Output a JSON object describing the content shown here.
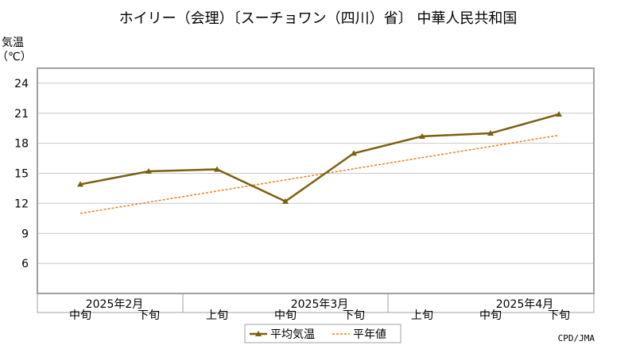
{
  "chart_data": {
    "type": "line",
    "title": "ホイリー（会理）〔スーチョワン（四川）省〕 中華人民共和国",
    "ylabel_line1": "気温",
    "ylabel_line2": "（℃）",
    "ylim": [
      3,
      25.5
    ],
    "yticks": [
      6,
      9,
      12,
      15,
      18,
      21,
      24
    ],
    "grid": true,
    "categories": [
      "中旬",
      "下旬",
      "上旬",
      "中旬",
      "下旬",
      "上旬",
      "中旬",
      "下旬"
    ],
    "month_labels": [
      {
        "label": "2025年2月",
        "center_index": 0.5
      },
      {
        "label": "2025年3月",
        "center_index": 3.5
      },
      {
        "label": "2025年4月",
        "center_index": 6.5
      }
    ],
    "month_dividers": [
      1.5,
      4.5
    ],
    "series": [
      {
        "name": "平均気温",
        "style": "solid-marker",
        "color": "#7a6010",
        "values": [
          13.9,
          15.2,
          15.4,
          12.2,
          17.0,
          18.7,
          19.0,
          20.9
        ]
      },
      {
        "name": "平年値",
        "style": "dashed",
        "color": "#f07c1c",
        "values": [
          11.0,
          null,
          null,
          null,
          null,
          null,
          null,
          18.8
        ]
      }
    ],
    "legend": {
      "placement": "bottom-center",
      "items": [
        "平均気温",
        "平年値"
      ]
    },
    "credit": "CPD/JMA"
  }
}
